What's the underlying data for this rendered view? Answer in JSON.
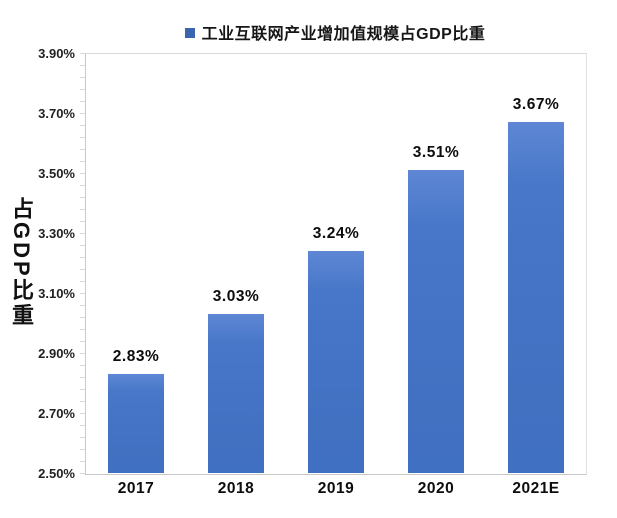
{
  "legend": {
    "label": "工业互联网产业增加值规模占GDP比重",
    "marker_color": "#3A66B0"
  },
  "chart_data": {
    "type": "bar",
    "title": "工业互联网产业增加值规模占GDP比重",
    "categories": [
      "2017",
      "2018",
      "2019",
      "2020",
      "2021E"
    ],
    "values": [
      2.83,
      3.03,
      3.24,
      3.51,
      3.67
    ],
    "data_labels": [
      "2.83%",
      "3.03%",
      "3.24%",
      "3.51%",
      "3.67%"
    ],
    "unit": "%",
    "xlabel": "",
    "ylabel": "占GDP比重",
    "ylim": [
      2.5,
      3.9
    ],
    "ytick_interval": 0.2,
    "ytick_labels": [
      "3.90%",
      "3.70%",
      "3.50%",
      "3.30%",
      "3.10%",
      "2.90%",
      "2.70%",
      "2.50%"
    ],
    "minor_tick_interval": 0.04,
    "grid": false,
    "legend_position": "top-center",
    "bar_color": "#4472C4"
  }
}
